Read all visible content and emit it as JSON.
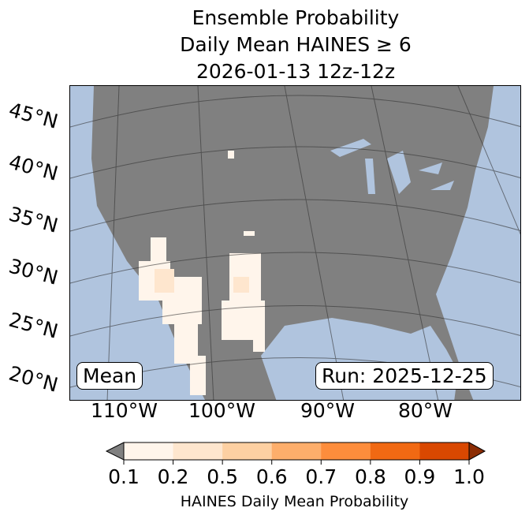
{
  "title": [
    "Ensemble Probability",
    "Daily Mean HAINES ≥ 6",
    "2026-01-13 12z-12z"
  ],
  "lat_labels": [
    "45°N",
    "40°N",
    "35°N",
    "30°N",
    "25°N",
    "20°N"
  ],
  "lon_labels": [
    "110°W",
    "100°W",
    "90°W",
    "80°W"
  ],
  "mean_label": "Mean",
  "run_label": "Run: 2025-12-25",
  "colorbar": {
    "label": "HAINES Daily Mean Probability",
    "ticks": [
      "0.1",
      "0.2",
      "0.5",
      "0.6",
      "0.7",
      "0.8",
      "0.9",
      "1.0"
    ],
    "colors": [
      "#fff5eb",
      "#fee6ce",
      "#fdd0a2",
      "#fdae6b",
      "#fd8d3c",
      "#f16913",
      "#d94801"
    ],
    "under_color": "#808080",
    "over_color": "#8c2d04"
  },
  "colors": {
    "land": "#808080",
    "ocean": "#b0c4de"
  }
}
